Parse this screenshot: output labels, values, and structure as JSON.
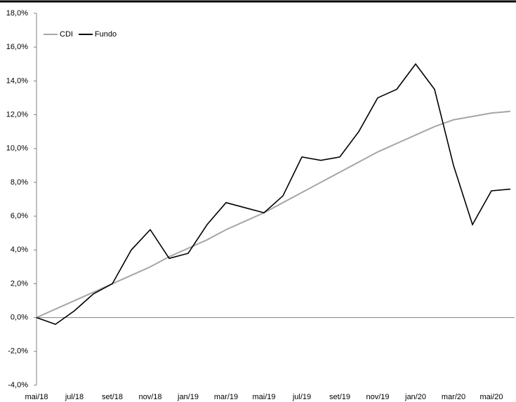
{
  "chart_data": {
    "type": "line",
    "categories": [
      "mai/18",
      null,
      "jul/18",
      null,
      "set/18",
      null,
      "nov/18",
      null,
      "jan/19",
      null,
      "mar/19",
      null,
      "mai/19",
      null,
      "jul/19",
      null,
      "set/19",
      null,
      "nov/19",
      null,
      "jan/20",
      null,
      "mar/20",
      null,
      "mai/20",
      null
    ],
    "series": [
      {
        "name": "CDI",
        "color": "#a6a6a6",
        "values": [
          0.0,
          0.5,
          1.0,
          1.5,
          2.0,
          2.5,
          3.0,
          3.6,
          4.1,
          4.6,
          5.2,
          5.7,
          6.2,
          6.8,
          7.4,
          8.0,
          8.6,
          9.2,
          9.8,
          10.3,
          10.8,
          11.3,
          11.7,
          11.9,
          12.1,
          12.2
        ]
      },
      {
        "name": "Fundo",
        "color": "#000000",
        "values": [
          0.0,
          -0.4,
          0.4,
          1.4,
          2.0,
          4.0,
          5.2,
          3.5,
          3.8,
          5.5,
          6.8,
          6.5,
          6.2,
          7.2,
          9.5,
          9.3,
          9.5,
          11.0,
          13.0,
          13.5,
          15.0,
          13.5,
          9.0,
          5.5,
          7.5,
          7.6
        ]
      }
    ],
    "ylim": [
      -4,
      18
    ],
    "yticks": [
      {
        "value": -4,
        "label": "-4,0%"
      },
      {
        "value": -2,
        "label": "-2,0%"
      },
      {
        "value": 0,
        "label": "0,0%"
      },
      {
        "value": 2,
        "label": "2,0%"
      },
      {
        "value": 4,
        "label": "4,0%"
      },
      {
        "value": 6,
        "label": "6,0%"
      },
      {
        "value": 8,
        "label": "8,0%"
      },
      {
        "value": 10,
        "label": "10,0%"
      },
      {
        "value": 12,
        "label": "12,0%"
      },
      {
        "value": 14,
        "label": "14,0%"
      },
      {
        "value": 16,
        "label": "16,0%"
      },
      {
        "value": 18,
        "label": "18,0%"
      }
    ],
    "grid": false,
    "legend": "top-left"
  }
}
